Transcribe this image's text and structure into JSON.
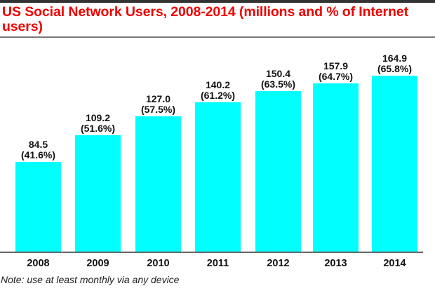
{
  "chart_data": {
    "type": "bar",
    "title": "US Social Network Users, 2008-2014 (millions and % of Internet users)",
    "xlabel": "",
    "ylabel": "",
    "categories": [
      "2008",
      "2009",
      "2010",
      "2011",
      "2012",
      "2013",
      "2014"
    ],
    "series": [
      {
        "name": "Social network users (millions)",
        "values": [
          84.5,
          109.2,
          127.0,
          140.2,
          150.4,
          157.9,
          164.9
        ]
      },
      {
        "name": "% of Internet users",
        "values": [
          41.6,
          51.6,
          57.5,
          61.2,
          63.5,
          64.7,
          65.8
        ]
      }
    ],
    "bar_color": "#00ffff",
    "grid": false,
    "legend": "none",
    "note": "Note: use at least monthly via any device"
  },
  "header": {
    "title": "US Social Network Users, 2008-2014 (millions and % of Internet users)",
    "title_color": "#ee0000"
  },
  "bars": [
    {
      "year": "2008",
      "value_label": "84.5",
      "pct_label": "(41.6%)"
    },
    {
      "year": "2009",
      "value_label": "109.2",
      "pct_label": "(51.6%)"
    },
    {
      "year": "2010",
      "value_label": "127.0",
      "pct_label": "(57.5%)"
    },
    {
      "year": "2011",
      "value_label": "140.2",
      "pct_label": "(61.2%)"
    },
    {
      "year": "2012",
      "value_label": "150.4",
      "pct_label": "(63.5%)"
    },
    {
      "year": "2013",
      "value_label": "157.9",
      "pct_label": "(64.7%)"
    },
    {
      "year": "2014",
      "value_label": "164.9",
      "pct_label": "(65.8%)"
    }
  ],
  "footer": {
    "note": "Note: use at least monthly via any device"
  }
}
